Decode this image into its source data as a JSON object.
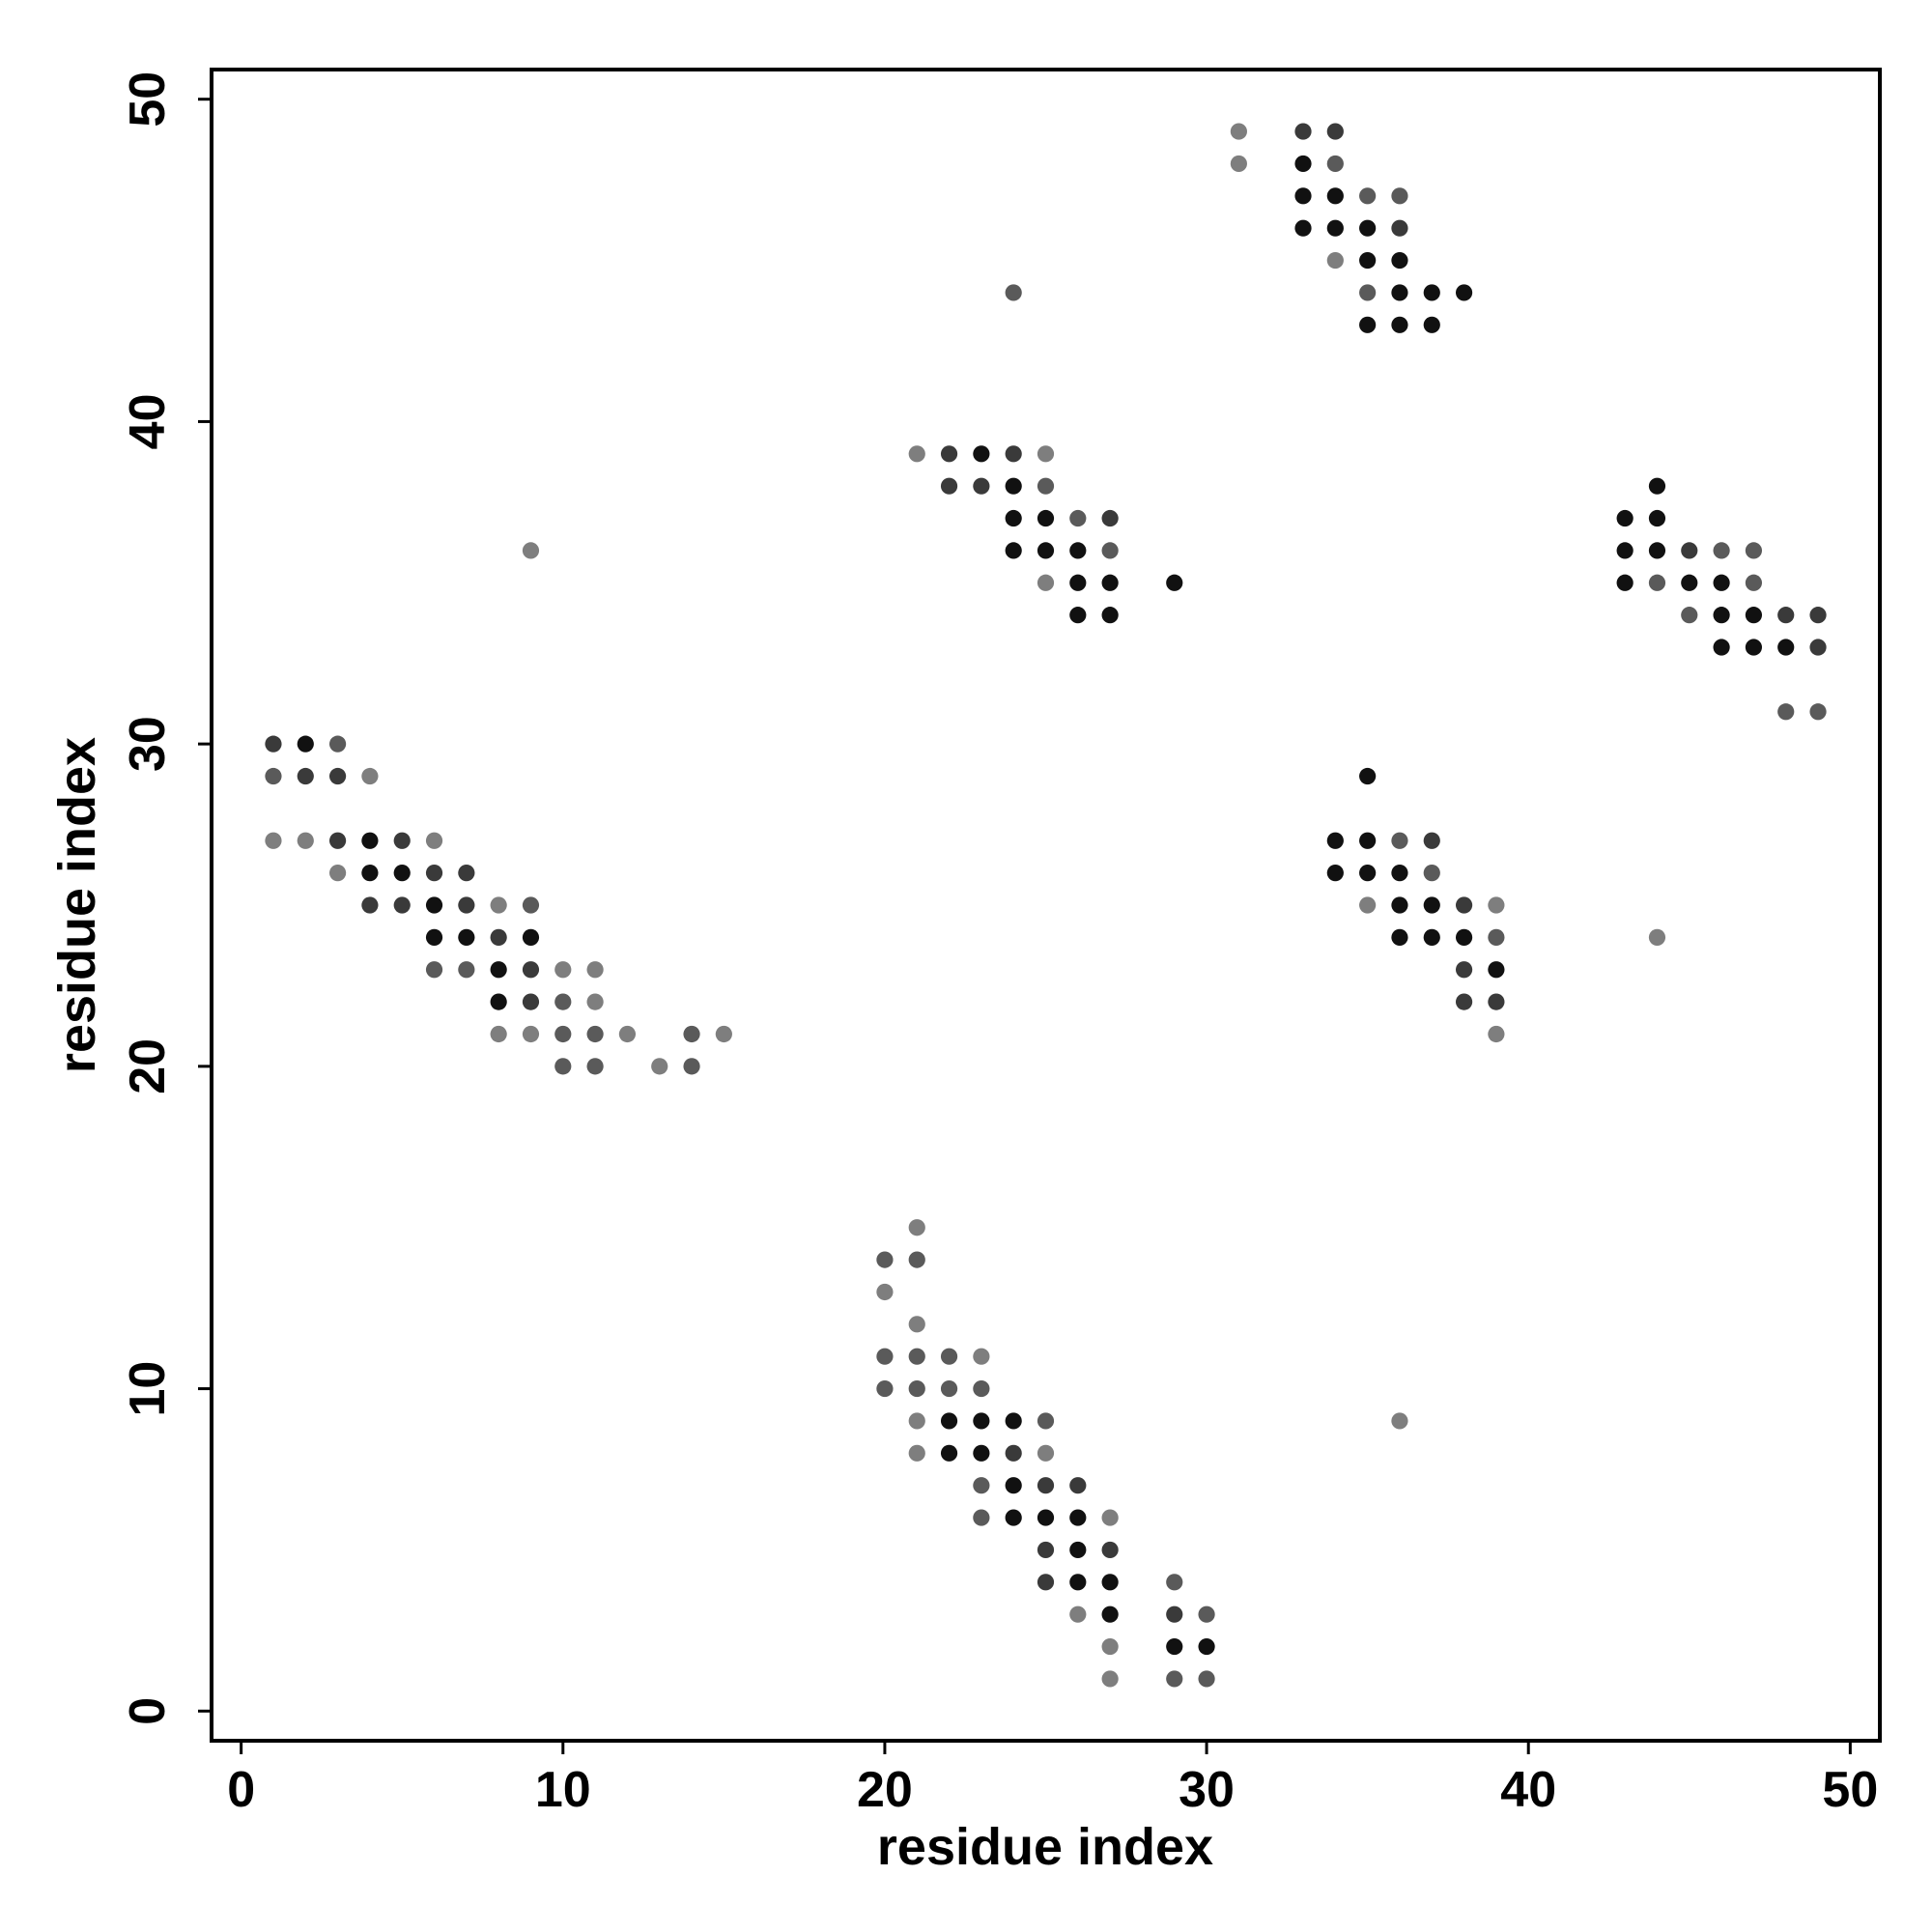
{
  "chart_data": {
    "type": "scatter",
    "xlabel": "residue index",
    "ylabel": "residue index",
    "xlim": [
      -0.92,
      50.92
    ],
    "ylim": [
      -0.92,
      50.92
    ],
    "xticks": [
      0,
      10,
      20,
      30,
      40,
      50
    ],
    "yticks": [
      0,
      10,
      20,
      30,
      40,
      50
    ],
    "series": [
      {
        "color": "#111111",
        "x": [
          2,
          4,
          4,
          5,
          6,
          6,
          7,
          9,
          8,
          8,
          22,
          23,
          24,
          22,
          23,
          24,
          24,
          25,
          26,
          26,
          26,
          27,
          27,
          29,
          30,
          23,
          24,
          24,
          25,
          24,
          25,
          26,
          26,
          27,
          29,
          26,
          27,
          33,
          33,
          34,
          33,
          34,
          35,
          35,
          36,
          36,
          37,
          38,
          35,
          36,
          37,
          44,
          43,
          44,
          43,
          44,
          43,
          45,
          46,
          46,
          47,
          46,
          47,
          48,
          35,
          34,
          35,
          34,
          35,
          36,
          36,
          37,
          36,
          37,
          38,
          39
        ],
        "y": [
          30,
          27,
          26,
          26,
          25,
          24,
          24,
          24,
          23,
          22,
          9,
          9,
          9,
          8,
          8,
          7,
          6,
          6,
          6,
          5,
          4,
          4,
          3,
          2,
          2,
          39,
          38,
          37,
          37,
          36,
          36,
          36,
          35,
          35,
          35,
          34,
          34,
          48,
          47,
          47,
          46,
          46,
          46,
          45,
          45,
          44,
          44,
          44,
          43,
          43,
          43,
          38,
          37,
          37,
          36,
          36,
          35,
          35,
          35,
          34,
          34,
          33,
          33,
          33,
          29,
          27,
          27,
          26,
          26,
          26,
          25,
          25,
          24,
          24,
          24,
          23
        ]
      },
      {
        "color": "#3a3a3a",
        "x": [
          1,
          2,
          3,
          3,
          5,
          6,
          7,
          4,
          5,
          7,
          8,
          9,
          9,
          24,
          25,
          26,
          25,
          27,
          25,
          29,
          22,
          24,
          22,
          23,
          27,
          33,
          34,
          36,
          45,
          48,
          49,
          49,
          37,
          38,
          38,
          38,
          39
        ],
        "y": [
          30,
          29,
          29,
          27,
          27,
          26,
          26,
          25,
          25,
          25,
          24,
          23,
          22,
          8,
          7,
          7,
          5,
          5,
          4,
          3,
          39,
          39,
          38,
          38,
          37,
          49,
          49,
          46,
          36,
          34,
          34,
          33,
          27,
          25,
          23,
          22,
          22
        ]
      },
      {
        "color": "#5a5a5a",
        "x": [
          3,
          1,
          9,
          6,
          7,
          10,
          10,
          11,
          14,
          10,
          11,
          14,
          20,
          21,
          20,
          21,
          22,
          20,
          21,
          22,
          23,
          25,
          23,
          23,
          29,
          30,
          29,
          30,
          25,
          26,
          27,
          24,
          34,
          35,
          36,
          35,
          46,
          47,
          44,
          47,
          45,
          48,
          49,
          36,
          37,
          39
        ],
        "y": [
          30,
          29,
          25,
          23,
          23,
          22,
          21,
          21,
          21,
          20,
          20,
          20,
          14,
          14,
          11,
          11,
          11,
          10,
          10,
          10,
          10,
          9,
          7,
          6,
          4,
          3,
          1,
          1,
          38,
          37,
          36,
          44,
          48,
          47,
          47,
          44,
          36,
          36,
          35,
          35,
          34,
          31,
          31,
          27,
          26,
          24
        ]
      },
      {
        "color": "#7e7e7e",
        "x": [
          4,
          1,
          2,
          6,
          3,
          8,
          10,
          11,
          11,
          8,
          9,
          12,
          15,
          13,
          9,
          21,
          20,
          21,
          23,
          21,
          21,
          25,
          27,
          26,
          27,
          27,
          36,
          21,
          25,
          25,
          31,
          31,
          34,
          35,
          39,
          39,
          44
        ],
        "y": [
          29,
          27,
          27,
          27,
          26,
          25,
          23,
          23,
          22,
          21,
          21,
          21,
          21,
          20,
          36,
          15,
          13,
          12,
          11,
          9,
          8,
          8,
          6,
          3,
          2,
          1,
          9,
          39,
          39,
          35,
          49,
          48,
          45,
          25,
          25,
          21,
          24
        ]
      }
    ]
  }
}
